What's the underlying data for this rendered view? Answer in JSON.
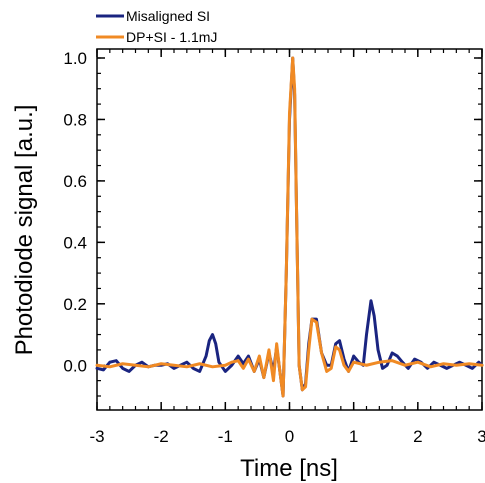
{
  "chart_data": {
    "type": "line",
    "title": "",
    "xlabel": "Time  [ns]",
    "ylabel": "Photodiode signal [a.u.]",
    "xlim": [
      -3,
      3
    ],
    "ylim": [
      -0.1,
      1.0
    ],
    "xticks": [
      -3,
      -2,
      -1,
      0,
      1,
      2,
      3
    ],
    "xtick_labels": [
      "-3",
      "-2",
      "-1",
      "0",
      "1",
      "2",
      "3"
    ],
    "yticks": [
      0.0,
      0.2,
      0.4,
      0.6,
      0.8,
      1.0
    ],
    "ytick_labels": [
      "0.0",
      "0.2",
      "0.4",
      "0.6",
      "0.8",
      "1.0"
    ],
    "grid": false,
    "legend_position": "top-left, above plot",
    "series": [
      {
        "name": "Misaligned SI",
        "color": "#1a2480",
        "x": [
          -3.0,
          -2.9,
          -2.8,
          -2.7,
          -2.6,
          -2.5,
          -2.4,
          -2.3,
          -2.2,
          -2.1,
          -2.0,
          -1.9,
          -1.8,
          -1.7,
          -1.6,
          -1.5,
          -1.4,
          -1.3,
          -1.25,
          -1.2,
          -1.15,
          -1.1,
          -1.0,
          -0.9,
          -0.8,
          -0.72,
          -0.64,
          -0.55,
          -0.47,
          -0.4,
          -0.32,
          -0.25,
          -0.2,
          -0.15,
          -0.1,
          -0.05,
          0.0,
          0.05,
          0.08,
          0.11,
          0.15,
          0.2,
          0.25,
          0.3,
          0.35,
          0.42,
          0.5,
          0.58,
          0.65,
          0.72,
          0.78,
          0.85,
          0.92,
          1.0,
          1.08,
          1.15,
          1.2,
          1.27,
          1.32,
          1.38,
          1.45,
          1.52,
          1.6,
          1.68,
          1.76,
          1.85,
          1.95,
          2.05,
          2.15,
          2.25,
          2.35,
          2.45,
          2.55,
          2.65,
          2.75,
          2.85,
          2.95,
          3.0
        ],
        "y": [
          -0.01,
          -0.015,
          0.01,
          0.015,
          -0.01,
          -0.02,
          0.0,
          0.01,
          -0.005,
          0.0,
          0.0,
          0.005,
          -0.01,
          0.0,
          0.01,
          -0.01,
          -0.02,
          0.03,
          0.08,
          0.1,
          0.07,
          0.01,
          -0.02,
          0.0,
          0.03,
          0.005,
          0.03,
          -0.02,
          0.02,
          -0.04,
          0.04,
          -0.02,
          0.06,
          -0.02,
          -0.1,
          0.3,
          0.8,
          1.0,
          0.88,
          0.5,
          0.0,
          -0.08,
          -0.06,
          0.07,
          0.15,
          0.15,
          0.04,
          0.0,
          0.0,
          0.07,
          0.08,
          0.02,
          -0.02,
          0.03,
          0.01,
          0.0,
          0.1,
          0.21,
          0.16,
          0.05,
          -0.01,
          0.0,
          0.04,
          0.03,
          0.01,
          -0.01,
          0.02,
          0.01,
          -0.01,
          0.01,
          0.0,
          -0.01,
          0.0,
          0.01,
          0.0,
          -0.01,
          0.01,
          0.0
        ]
      },
      {
        "name": "DP+SI - 1.1mJ",
        "color": "#f08a24",
        "x": [
          -3.0,
          -2.8,
          -2.6,
          -2.4,
          -2.2,
          -2.0,
          -1.8,
          -1.6,
          -1.4,
          -1.2,
          -1.0,
          -0.9,
          -0.8,
          -0.72,
          -0.64,
          -0.55,
          -0.47,
          -0.4,
          -0.32,
          -0.25,
          -0.2,
          -0.15,
          -0.1,
          -0.05,
          0.0,
          0.05,
          0.08,
          0.11,
          0.15,
          0.2,
          0.25,
          0.3,
          0.35,
          0.42,
          0.5,
          0.58,
          0.65,
          0.72,
          0.78,
          0.85,
          0.92,
          1.0,
          1.2,
          1.4,
          1.6,
          1.8,
          2.0,
          2.2,
          2.4,
          2.6,
          2.8,
          3.0
        ],
        "y": [
          0.0,
          -0.005,
          0.005,
          0.0,
          -0.005,
          0.005,
          0.0,
          -0.005,
          0.005,
          -0.005,
          0.0,
          0.01,
          0.015,
          -0.01,
          0.02,
          -0.02,
          0.03,
          -0.04,
          0.05,
          -0.05,
          0.07,
          -0.02,
          -0.1,
          0.3,
          0.82,
          1.0,
          0.9,
          0.5,
          0.0,
          -0.08,
          -0.07,
          0.05,
          0.15,
          0.14,
          0.04,
          -0.02,
          -0.01,
          0.06,
          0.05,
          0.0,
          -0.02,
          0.01,
          0.0,
          0.01,
          0.015,
          0.0,
          0.01,
          -0.005,
          0.005,
          0.0,
          0.005,
          0.0
        ]
      }
    ]
  }
}
